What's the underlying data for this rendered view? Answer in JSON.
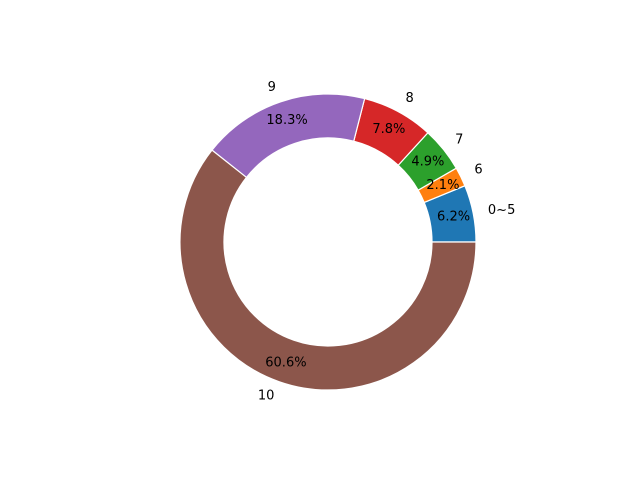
{
  "chart_data": {
    "type": "pie",
    "variant": "donut",
    "title": "",
    "start_angle_deg": 0,
    "direction": "counterclockwise",
    "slices": [
      {
        "label": "0~5",
        "percent": 6.2,
        "pct_text": "6.2%",
        "color": "#1f77b4"
      },
      {
        "label": "6",
        "percent": 2.1,
        "pct_text": "2.1%",
        "color": "#ff7f0e"
      },
      {
        "label": "7",
        "percent": 4.9,
        "pct_text": "4.9%",
        "color": "#2ca02c"
      },
      {
        "label": "8",
        "percent": 7.8,
        "pct_text": "7.8%",
        "color": "#d62728"
      },
      {
        "label": "9",
        "percent": 18.3,
        "pct_text": "18.3%",
        "color": "#9467bd"
      },
      {
        "label": "10",
        "percent": 60.6,
        "pct_text": "60.6%",
        "color": "#8c564b"
      }
    ],
    "edge_color": "#ffffff"
  }
}
